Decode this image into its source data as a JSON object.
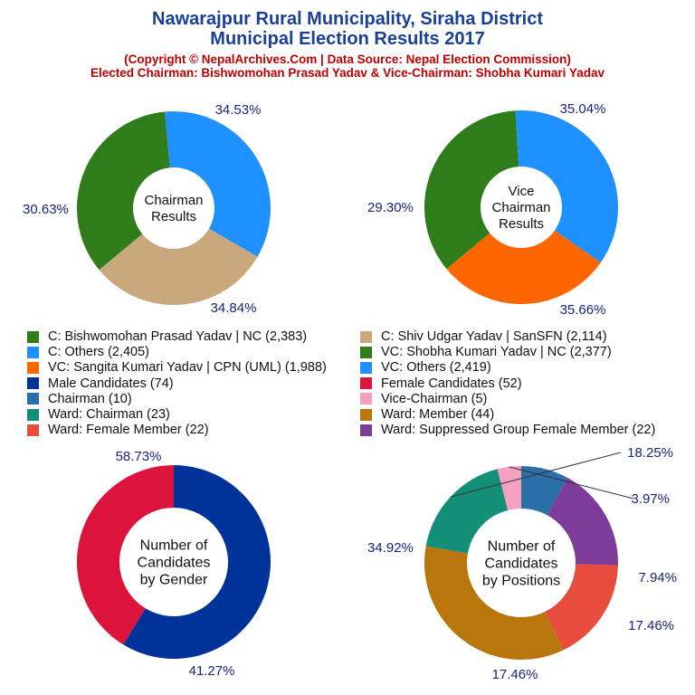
{
  "header": {
    "title1": "Nawarajpur Rural Municipality, Siraha District",
    "title2": "Municipal Election Results 2017",
    "copyright": "(Copyright © NepalArchives.Com | Data Source: Nepal Election Commission)",
    "elected": "Elected Chairman: Bishwomohan Prasad Yadav & Vice-Chairman: Shobha Kumari Yadav"
  },
  "legend": [
    {
      "label": "C: Bishwomohan Prasad Yadav | NC (2,383)",
      "color": "#2e7d1a"
    },
    {
      "label": "C: Shiv Udgar Yadav | SanSFN (2,114)",
      "color": "#c9a87d"
    },
    {
      "label": "C: Others (2,405)",
      "color": "#1e90ff"
    },
    {
      "label": "VC: Shobha Kumari Yadav | NC (2,377)",
      "color": "#2e7d1a"
    },
    {
      "label": "VC: Sangita Kumari Yadav | CPN (UML) (1,988)",
      "color": "#ff6600"
    },
    {
      "label": "VC: Others (2,419)",
      "color": "#1e90ff"
    },
    {
      "label": "Male Candidates (74)",
      "color": "#003399"
    },
    {
      "label": "Female Candidates (52)",
      "color": "#dc143c"
    },
    {
      "label": "Chairman (10)",
      "color": "#2a6fa8"
    },
    {
      "label": "Vice-Chairman (5)",
      "color": "#f4a0c0"
    },
    {
      "label": "Ward: Chairman (23)",
      "color": "#148f77"
    },
    {
      "label": "Ward: Member (44)",
      "color": "#b8760c"
    },
    {
      "label": "Ward: Female Member (22)",
      "color": "#e74c3c"
    },
    {
      "label": "Ward: Suppressed Group Female Member (22)",
      "color": "#7d3c98"
    }
  ],
  "chart_data": [
    {
      "type": "pie",
      "title": "Chairman Results",
      "center_lines": [
        "Chairman",
        "Results"
      ],
      "slices": [
        {
          "name": "C: Bishwomohan Prasad Yadav | NC",
          "value": 2383,
          "label": "34.53%",
          "color": "#2e7d1a"
        },
        {
          "name": "C: Others",
          "value": 2405,
          "label": "34.84%",
          "color": "#1e90ff"
        },
        {
          "name": "C: Shiv Udgar Yadav | SanSFN",
          "value": 2114,
          "label": "30.63%",
          "color": "#c9a87d"
        }
      ]
    },
    {
      "type": "pie",
      "title": "Vice Chairman Results",
      "center_lines": [
        "Vice",
        "Chairman",
        "Results"
      ],
      "slices": [
        {
          "name": "VC: Shobha Kumari Yadav | NC",
          "value": 2377,
          "label": "35.04%",
          "color": "#2e7d1a"
        },
        {
          "name": "VC: Others",
          "value": 2419,
          "label": "35.66%",
          "color": "#1e90ff"
        },
        {
          "name": "VC: Sangita Kumari Yadav | CPN (UML)",
          "value": 1988,
          "label": "29.30%",
          "color": "#ff6600"
        }
      ]
    },
    {
      "type": "pie",
      "title": "Number of Candidates by Gender",
      "center_lines": [
        "Number of",
        "Candidates",
        "by Gender"
      ],
      "slices": [
        {
          "name": "Male Candidates",
          "value": 74,
          "label": "58.73%",
          "color": "#003399"
        },
        {
          "name": "Female Candidates",
          "value": 52,
          "label": "41.27%",
          "color": "#dc143c"
        }
      ]
    },
    {
      "type": "pie",
      "title": "Number of Candidates by Positions",
      "center_lines": [
        "Number of",
        "Candidates",
        "by Positions"
      ],
      "slices": [
        {
          "name": "Chairman",
          "value": 10,
          "label": "7.94%",
          "color": "#2a6fa8"
        },
        {
          "name": "Ward: Suppressed Group Female Member",
          "value": 22,
          "label": "17.46%",
          "color": "#7d3c98"
        },
        {
          "name": "Ward: Female Member",
          "value": 22,
          "label": "17.46%",
          "color": "#e74c3c"
        },
        {
          "name": "Ward: Member",
          "value": 44,
          "label": "34.92%",
          "color": "#b8760c"
        },
        {
          "name": "Ward: Chairman",
          "value": 23,
          "label": "18.25%",
          "color": "#148f77"
        },
        {
          "name": "Vice-Chairman",
          "value": 5,
          "label": "3.97%",
          "color": "#f4a0c0"
        }
      ]
    }
  ]
}
